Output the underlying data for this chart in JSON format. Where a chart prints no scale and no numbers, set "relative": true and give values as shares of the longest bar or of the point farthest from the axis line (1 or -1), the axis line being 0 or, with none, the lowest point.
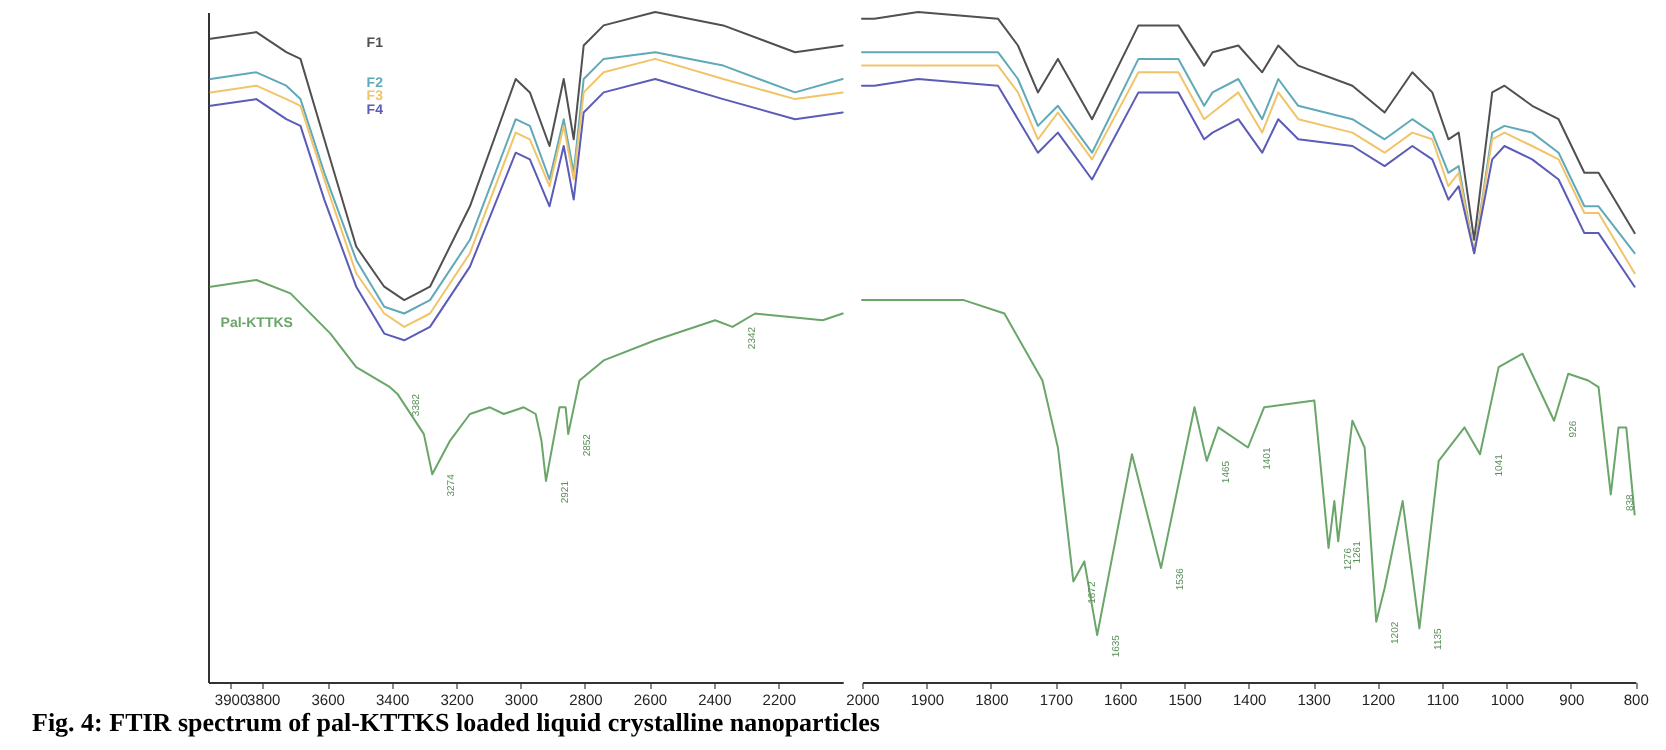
{
  "chart_data": [
    {
      "type": "line",
      "relative": true,
      "title": "Fig. 4: FTIR spectrum of pal-KTTKS loaded liquid crystalline nanoparticles",
      "xlim": [
        3970,
        2000
      ],
      "xticks": [
        3900,
        3800,
        3600,
        3400,
        3200,
        3000,
        2800,
        2600,
        2400,
        2200
      ],
      "line_style": "solid",
      "series": [
        {
          "name": "F1",
          "color": "#505050",
          "x": [
            3962,
            3820,
            3727,
            3683,
            3609,
            3510,
            3423,
            3361,
            3281,
            3157,
            3015,
            2971,
            2910,
            2866,
            2835,
            2804,
            2742,
            2582,
            2371,
            2148,
            2000
          ],
          "values": [
            0.96,
            0.97,
            0.94,
            0.93,
            0.81,
            0.65,
            0.59,
            0.57,
            0.59,
            0.71,
            0.9,
            0.88,
            0.8,
            0.9,
            0.81,
            0.95,
            0.98,
            1.0,
            0.98,
            0.94,
            0.95
          ]
        },
        {
          "name": "F2",
          "color": "#5fa9b9",
          "x": [
            3962,
            3820,
            3727,
            3683,
            3609,
            3510,
            3423,
            3361,
            3281,
            3157,
            3015,
            2971,
            2910,
            2866,
            2835,
            2804,
            2742,
            2582,
            2371,
            2148,
            2000
          ],
          "values": [
            0.9,
            0.91,
            0.89,
            0.87,
            0.76,
            0.63,
            0.56,
            0.55,
            0.57,
            0.66,
            0.84,
            0.83,
            0.75,
            0.84,
            0.76,
            0.9,
            0.93,
            0.94,
            0.92,
            0.88,
            0.9
          ]
        },
        {
          "name": "F3",
          "color": "#f2c46a",
          "x": [
            3962,
            3820,
            3727,
            3683,
            3609,
            3510,
            3423,
            3361,
            3281,
            3157,
            3015,
            2971,
            2910,
            2866,
            2835,
            2804,
            2742,
            2582,
            2371,
            2148,
            2000
          ],
          "values": [
            0.88,
            0.89,
            0.87,
            0.86,
            0.75,
            0.61,
            0.55,
            0.53,
            0.55,
            0.64,
            0.82,
            0.81,
            0.74,
            0.83,
            0.75,
            0.88,
            0.91,
            0.93,
            0.9,
            0.87,
            0.88
          ]
        },
        {
          "name": "F4",
          "color": "#5b5bb8",
          "x": [
            3962,
            3820,
            3727,
            3683,
            3609,
            3510,
            3423,
            3361,
            3281,
            3157,
            3015,
            2971,
            2910,
            2866,
            2835,
            2804,
            2742,
            2582,
            2371,
            2148,
            2000
          ],
          "values": [
            0.86,
            0.87,
            0.84,
            0.83,
            0.72,
            0.59,
            0.52,
            0.51,
            0.53,
            0.62,
            0.79,
            0.78,
            0.71,
            0.8,
            0.72,
            0.85,
            0.88,
            0.9,
            0.87,
            0.84,
            0.85
          ]
        },
        {
          "name": "Pal-KTTKS",
          "color": "#6aa56a",
          "x": [
            3962,
            3820,
            3714,
            3590,
            3510,
            3405,
            3382,
            3300,
            3274,
            3219,
            3157,
            3095,
            3052,
            2990,
            2953,
            2935,
            2921,
            2879,
            2860,
            2852,
            2817,
            2742,
            2582,
            2396,
            2342,
            2272,
            2062,
            2000
          ],
          "values": [
            0.59,
            0.6,
            0.58,
            0.52,
            0.47,
            0.44,
            0.43,
            0.37,
            0.31,
            0.36,
            0.4,
            0.41,
            0.4,
            0.41,
            0.4,
            0.36,
            0.3,
            0.41,
            0.41,
            0.37,
            0.45,
            0.48,
            0.51,
            0.54,
            0.53,
            0.55,
            0.54,
            0.55
          ]
        }
      ],
      "annotations": [
        {
          "text": "3382",
          "x": 3382,
          "y": 0.43
        },
        {
          "text": "3274",
          "x": 3274,
          "y": 0.31
        },
        {
          "text": "2921",
          "x": 2921,
          "y": 0.3
        },
        {
          "text": "2852",
          "x": 2852,
          "y": 0.37
        },
        {
          "text": "2342",
          "x": 2342,
          "y": 0.53
        }
      ]
    },
    {
      "type": "line",
      "relative": true,
      "xlim": [
        2000,
        800
      ],
      "xticks": [
        2000,
        1900,
        1800,
        1700,
        1600,
        1500,
        1400,
        1300,
        1200,
        1100,
        1000,
        900,
        800
      ],
      "line_style": "solid",
      "series": [
        {
          "color": "#505050",
          "x": [
            2000,
            1981,
            1913,
            1789,
            1758,
            1727,
            1696,
            1643,
            1571,
            1509,
            1469,
            1456,
            1416,
            1379,
            1354,
            1323,
            1239,
            1189,
            1146,
            1115,
            1090,
            1074,
            1050,
            1022,
            1003,
            960,
            919,
            879,
            857,
            801
          ],
          "values": [
            0.99,
            0.99,
            1.0,
            0.99,
            0.95,
            0.88,
            0.93,
            0.84,
            0.98,
            0.98,
            0.92,
            0.94,
            0.95,
            0.91,
            0.95,
            0.92,
            0.89,
            0.85,
            0.91,
            0.88,
            0.81,
            0.82,
            0.66,
            0.88,
            0.89,
            0.86,
            0.84,
            0.76,
            0.76,
            0.67
          ]
        },
        {
          "color": "#5fa9b9",
          "x": [
            2000,
            1981,
            1913,
            1789,
            1758,
            1727,
            1696,
            1643,
            1571,
            1509,
            1469,
            1456,
            1416,
            1379,
            1354,
            1323,
            1239,
            1189,
            1146,
            1115,
            1090,
            1074,
            1050,
            1022,
            1003,
            960,
            919,
            879,
            857,
            801
          ],
          "values": [
            0.94,
            0.94,
            0.94,
            0.94,
            0.9,
            0.83,
            0.86,
            0.79,
            0.93,
            0.93,
            0.86,
            0.88,
            0.9,
            0.84,
            0.9,
            0.86,
            0.84,
            0.81,
            0.84,
            0.82,
            0.76,
            0.77,
            0.64,
            0.82,
            0.83,
            0.82,
            0.79,
            0.71,
            0.71,
            0.64
          ]
        },
        {
          "color": "#f2c46a",
          "x": [
            2000,
            1981,
            1913,
            1789,
            1758,
            1727,
            1696,
            1643,
            1571,
            1509,
            1469,
            1456,
            1416,
            1379,
            1354,
            1323,
            1239,
            1189,
            1146,
            1115,
            1090,
            1074,
            1050,
            1022,
            1003,
            960,
            919,
            879,
            857,
            801
          ],
          "values": [
            0.92,
            0.92,
            0.92,
            0.92,
            0.88,
            0.81,
            0.85,
            0.78,
            0.91,
            0.91,
            0.84,
            0.85,
            0.88,
            0.82,
            0.88,
            0.84,
            0.82,
            0.79,
            0.82,
            0.81,
            0.74,
            0.76,
            0.64,
            0.81,
            0.82,
            0.8,
            0.78,
            0.7,
            0.7,
            0.61
          ]
        },
        {
          "color": "#5b5bb8",
          "x": [
            2000,
            1981,
            1913,
            1789,
            1758,
            1727,
            1696,
            1643,
            1571,
            1509,
            1469,
            1456,
            1416,
            1379,
            1354,
            1323,
            1239,
            1189,
            1146,
            1115,
            1090,
            1074,
            1050,
            1022,
            1003,
            960,
            919,
            879,
            857,
            801
          ],
          "values": [
            0.89,
            0.89,
            0.9,
            0.89,
            0.84,
            0.79,
            0.82,
            0.75,
            0.88,
            0.88,
            0.81,
            0.82,
            0.84,
            0.79,
            0.84,
            0.81,
            0.8,
            0.77,
            0.8,
            0.78,
            0.72,
            0.74,
            0.64,
            0.78,
            0.8,
            0.78,
            0.75,
            0.67,
            0.67,
            0.59
          ]
        },
        {
          "color": "#6aa56a",
          "x": [
            2000,
            1913,
            1842,
            1779,
            1720,
            1696,
            1672,
            1655,
            1635,
            1581,
            1536,
            1484,
            1465,
            1447,
            1401,
            1376,
            1298,
            1276,
            1267,
            1261,
            1239,
            1220,
            1202,
            1189,
            1161,
            1135,
            1105,
            1065,
            1041,
            1012,
            975,
            926,
            904,
            873,
            857,
            838,
            826,
            814,
            801
          ],
          "values": [
            0.57,
            0.57,
            0.57,
            0.55,
            0.45,
            0.35,
            0.15,
            0.18,
            0.07,
            0.34,
            0.17,
            0.41,
            0.33,
            0.38,
            0.35,
            0.41,
            0.42,
            0.2,
            0.27,
            0.21,
            0.39,
            0.35,
            0.09,
            0.14,
            0.27,
            0.08,
            0.33,
            0.38,
            0.34,
            0.47,
            0.49,
            0.39,
            0.46,
            0.45,
            0.44,
            0.28,
            0.38,
            0.38,
            0.25
          ]
        }
      ],
      "annotations": [
        {
          "text": "1672",
          "x": 1672,
          "y": 0.15
        },
        {
          "text": "1635",
          "x": 1635,
          "y": 0.07
        },
        {
          "text": "1536",
          "x": 1536,
          "y": 0.17
        },
        {
          "text": "1465",
          "x": 1465,
          "y": 0.33
        },
        {
          "text": "1401",
          "x": 1401,
          "y": 0.35
        },
        {
          "text": "1276",
          "x": 1276,
          "y": 0.2
        },
        {
          "text": "1261",
          "x": 1261,
          "y": 0.21
        },
        {
          "text": "1202",
          "x": 1202,
          "y": 0.09
        },
        {
          "text": "1135",
          "x": 1135,
          "y": 0.08
        },
        {
          "text": "1041",
          "x": 1041,
          "y": 0.34
        },
        {
          "text": "926",
          "x": 926,
          "y": 0.39
        },
        {
          "text": "838",
          "x": 838,
          "y": 0.28
        }
      ]
    }
  ]
}
